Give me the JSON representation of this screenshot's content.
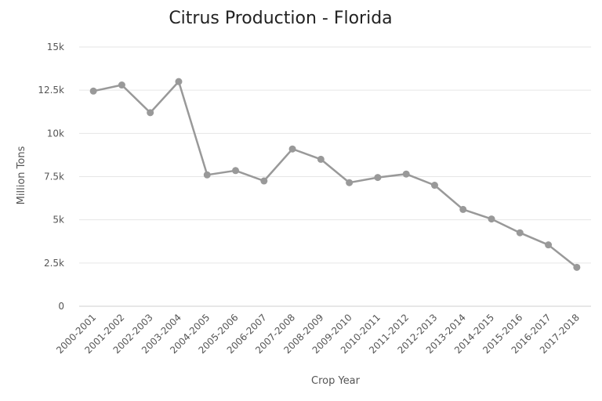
{
  "chart_data": {
    "type": "line",
    "title": "Citrus Production - Florida",
    "xlabel": "Crop Year",
    "ylabel": "Million Tons",
    "categories": [
      "2000-2001",
      "2001-2002",
      "2002-2003",
      "2003-2004",
      "2004-2005",
      "2005-2006",
      "2006-2007",
      "2007-2008",
      "2008-2009",
      "2009-2010",
      "2010-2011",
      "2011-2012",
      "2012-2013",
      "2013-2014",
      "2014-2015",
      "2015-2016",
      "2016-2017",
      "2017-2018"
    ],
    "series": [
      {
        "values": [
          12450,
          12800,
          11200,
          13000,
          7600,
          7850,
          7250,
          9100,
          8500,
          7150,
          7450,
          7650,
          7000,
          5600,
          5050,
          4250,
          3550,
          2250
        ]
      }
    ],
    "ylim": [
      0,
      15000
    ],
    "yticks": [
      0,
      2500,
      5000,
      7500,
      10000,
      12500,
      15000
    ],
    "ytick_labels": [
      "0",
      "2.5k",
      "5k",
      "7.5k",
      "10k",
      "12.5k",
      "15k"
    ],
    "grid": true,
    "line_color": "#999999"
  }
}
